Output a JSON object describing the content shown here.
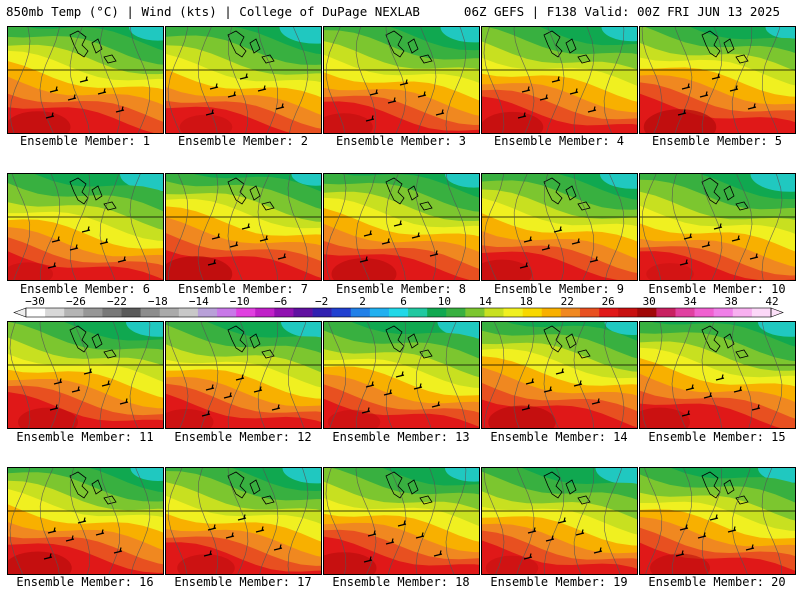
{
  "header": {
    "left": "850mb Temp (°C) | Wind (kts) | College of DuPage NEXLAB",
    "right": "06Z GEFS | F138 Valid: 00Z FRI JUN 13 2025"
  },
  "colorbar": {
    "labels": [
      "−30",
      "−26",
      "−22",
      "−18",
      "−14",
      "−10",
      "−6",
      "−2",
      "2",
      "6",
      "10",
      "14",
      "18",
      "22",
      "26",
      "30",
      "34",
      "38",
      "42"
    ],
    "colors": [
      "#ffffff",
      "#d8d8d8",
      "#b4b4b4",
      "#969696",
      "#787878",
      "#5a5a5a",
      "#8c8c8c",
      "#aaaaaa",
      "#c8c8c8",
      "#b8a0d8",
      "#c878e8",
      "#e040e0",
      "#c020c8",
      "#9010b0",
      "#6010a0",
      "#3020b0",
      "#2040d0",
      "#2080e8",
      "#20b0f0",
      "#20d8e8",
      "#20c8a0",
      "#10a850",
      "#38b040",
      "#7cc62f",
      "#c8e020",
      "#f0f020",
      "#f8d800",
      "#f8b000",
      "#f08820",
      "#e85020",
      "#e01818",
      "#c81010",
      "#a00808",
      "#c82060",
      "#e040a0",
      "#f060d0",
      "#f080e8",
      "#f8b0f0",
      "#fcd8f8"
    ]
  },
  "panels": [
    {
      "id": 1,
      "caption": "Ensemble Member: 1",
      "warmth": 0.7
    },
    {
      "id": 2,
      "caption": "Ensemble Member: 2",
      "warmth": 0.45
    },
    {
      "id": 3,
      "caption": "Ensemble Member: 3",
      "warmth": 0.55
    },
    {
      "id": 4,
      "caption": "Ensemble Member: 4",
      "warmth": 0.65
    },
    {
      "id": 5,
      "caption": "Ensemble Member: 5",
      "warmth": 0.85
    },
    {
      "id": 6,
      "caption": "Ensemble Member: 6",
      "warmth": 0.4
    },
    {
      "id": 7,
      "caption": "Ensemble Member: 7",
      "warmth": 0.85
    },
    {
      "id": 8,
      "caption": "Ensemble Member: 8",
      "warmth": 0.7
    },
    {
      "id": 9,
      "caption": "Ensemble Member: 9",
      "warmth": 0.6
    },
    {
      "id": 10,
      "caption": "Ensemble Member: 10",
      "warmth": 0.35
    },
    {
      "id": 11,
      "caption": "Ensemble Member: 11",
      "warmth": 0.6
    },
    {
      "id": 12,
      "caption": "Ensemble Member: 12",
      "warmth": 0.5
    },
    {
      "id": 13,
      "caption": "Ensemble Member: 13",
      "warmth": 0.45
    },
    {
      "id": 14,
      "caption": "Ensemble Member: 14",
      "warmth": 0.75
    },
    {
      "id": 15,
      "caption": "Ensemble Member: 15",
      "warmth": 0.6
    },
    {
      "id": 16,
      "caption": "Ensemble Member: 16",
      "warmth": 0.75
    },
    {
      "id": 17,
      "caption": "Ensemble Member: 17",
      "warmth": 0.55
    },
    {
      "id": 18,
      "caption": "Ensemble Member: 18",
      "warmth": 0.7
    },
    {
      "id": 19,
      "caption": "Ensemble Member: 19",
      "warmth": 0.45
    },
    {
      "id": 20,
      "caption": "Ensemble Member: 20",
      "warmth": 0.6
    }
  ]
}
